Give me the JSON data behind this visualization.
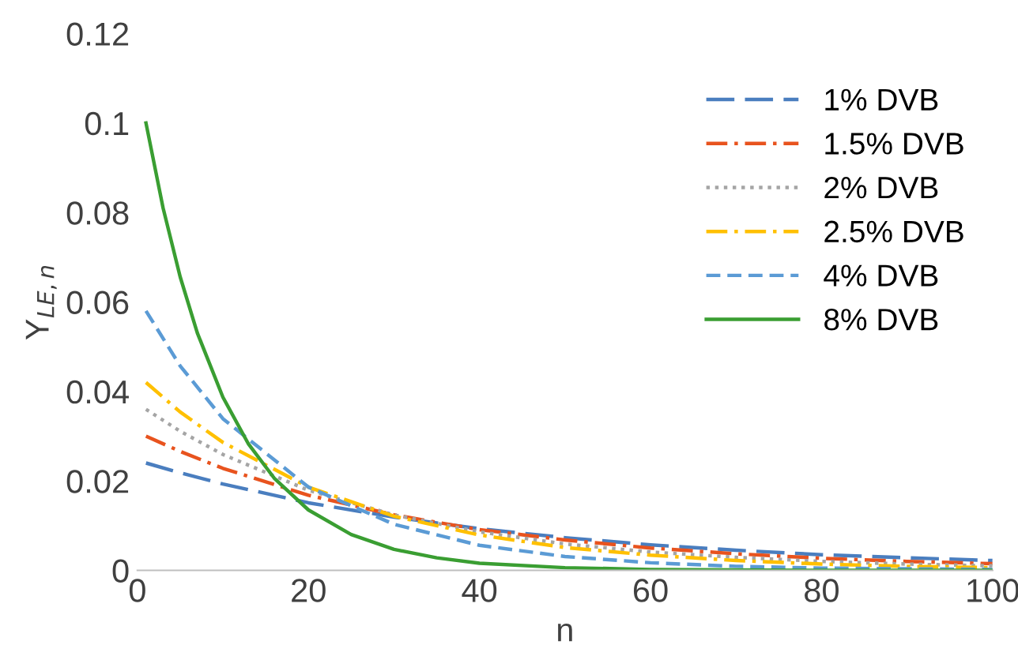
{
  "chart_data": {
    "type": "line",
    "xlabel": "n",
    "ylabel": "Y$_{LE,n}$",
    "xlim": [
      0,
      100
    ],
    "xticks": [
      0,
      20,
      40,
      60,
      80,
      100
    ],
    "ylim": [
      0,
      0.12
    ],
    "yticks": [
      0,
      0.02,
      0.04,
      0.06,
      0.08,
      0.1,
      0.12
    ],
    "grid": false,
    "legend": "top right",
    "marker": "none",
    "series": [
      {
        "name": "1% DVB",
        "color": "#4a7ebf",
        "line_style": "longdash",
        "x": [
          1,
          5,
          10,
          20,
          30,
          40,
          50,
          60,
          70,
          80,
          90,
          100
        ],
        "values": [
          0.024,
          0.0218,
          0.0193,
          0.0151,
          0.0119,
          0.0093,
          0.0073,
          0.0057,
          0.0045,
          0.0035,
          0.0028,
          0.0022
        ]
      },
      {
        "name": "1.5% DVB",
        "color": "#e8531e",
        "line_style": "dashdot",
        "x": [
          1,
          5,
          10,
          20,
          30,
          40,
          50,
          60,
          70,
          80,
          90,
          100
        ],
        "values": [
          0.03,
          0.0266,
          0.0228,
          0.0168,
          0.0124,
          0.0091,
          0.0068,
          0.005,
          0.0037,
          0.0027,
          0.002,
          0.0015
        ]
      },
      {
        "name": "2% DVB",
        "color": "#a5a5a5",
        "line_style": "dotted",
        "x": [
          1,
          5,
          10,
          20,
          30,
          40,
          50,
          60,
          70,
          80,
          90,
          100
        ],
        "values": [
          0.036,
          0.0311,
          0.0259,
          0.0179,
          0.0124,
          0.0086,
          0.0059,
          0.0041,
          0.0029,
          0.002,
          0.0014,
          0.001
        ]
      },
      {
        "name": "2.5% DVB",
        "color": "#ffc000",
        "line_style": "dashdot",
        "x": [
          1,
          5,
          10,
          20,
          30,
          40,
          50,
          60,
          70,
          80,
          90,
          100
        ],
        "values": [
          0.042,
          0.0354,
          0.0286,
          0.0186,
          0.0121,
          0.0079,
          0.0051,
          0.0034,
          0.0022,
          0.0014,
          0.0009,
          0.0006
        ]
      },
      {
        "name": "4% DVB",
        "color": "#5b9bd5",
        "line_style": "dashed",
        "x": [
          1,
          5,
          10,
          20,
          30,
          40,
          50,
          60,
          70,
          80,
          100
        ],
        "values": [
          0.058,
          0.0457,
          0.0339,
          0.0186,
          0.0103,
          0.0056,
          0.0031,
          0.0017,
          0.0009,
          0.0005,
          0.0002
        ]
      },
      {
        "name": "8% DVB",
        "color": "#3a9e32",
        "line_style": "solid",
        "x": [
          1,
          3,
          5,
          7,
          10,
          13,
          16,
          20,
          25,
          30,
          35,
          40,
          50,
          60,
          70,
          80,
          100
        ],
        "values": [
          0.1,
          0.081,
          0.0656,
          0.0531,
          0.0387,
          0.0282,
          0.0206,
          0.0135,
          0.008,
          0.0047,
          0.0028,
          0.0016,
          0.0006,
          0.0002,
          0.0001,
          0.0,
          0.0
        ]
      }
    ]
  }
}
